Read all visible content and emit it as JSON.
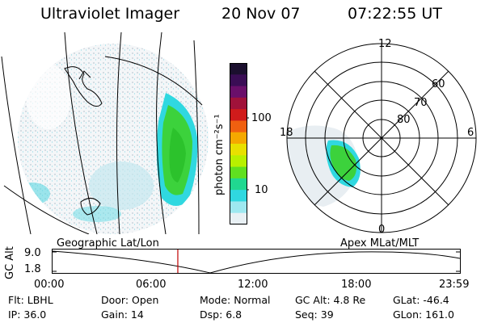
{
  "header": {
    "instrument": "Ultraviolet Imager",
    "date": "20 Nov 07",
    "time": "07:22:55 UT"
  },
  "colorbar": {
    "unit_label": "photon cm⁻²s⁻¹",
    "ticks": [
      "100",
      "10"
    ],
    "colors": [
      "#1b0f2e",
      "#3a0d55",
      "#6a0f6a",
      "#a0123a",
      "#d01b1b",
      "#f06010",
      "#f5a800",
      "#e8e000",
      "#b8f000",
      "#60e020",
      "#20d890",
      "#30d8e0",
      "#9ee8f0",
      "#e8f0f4"
    ]
  },
  "polar": {
    "mlt_labels": [
      "12",
      "18",
      "6",
      "0"
    ],
    "lat_labels": [
      "60",
      "70",
      "80"
    ]
  },
  "panel_labels": {
    "left": "Geographic Lat/Lon",
    "right": "Apex MLat/MLT"
  },
  "altitude_plot": {
    "axis_label": "GC Alt",
    "y_ticks": [
      "9.0",
      "1.8"
    ],
    "x_ticks": [
      "00:00",
      "06:00",
      "12:00",
      "18:00",
      "23:59"
    ],
    "current_time_hours": 7.38,
    "ylim": [
      1.8,
      9.0
    ]
  },
  "info": {
    "row1": [
      "Flt: LBHL",
      "Door: Open",
      "Mode: Normal",
      "GC Alt: 4.8 Re",
      "GLat: -46.4"
    ],
    "row2": [
      "IP: 36.0",
      "Gain: 14",
      "Dsp:     6.8",
      "Seq: 39",
      "GLon: 161.0"
    ]
  },
  "accent_colors": {
    "time_marker": "#c00000",
    "aurora_green": "#3cd23c",
    "aurora_cyan": "#30d8e0"
  }
}
